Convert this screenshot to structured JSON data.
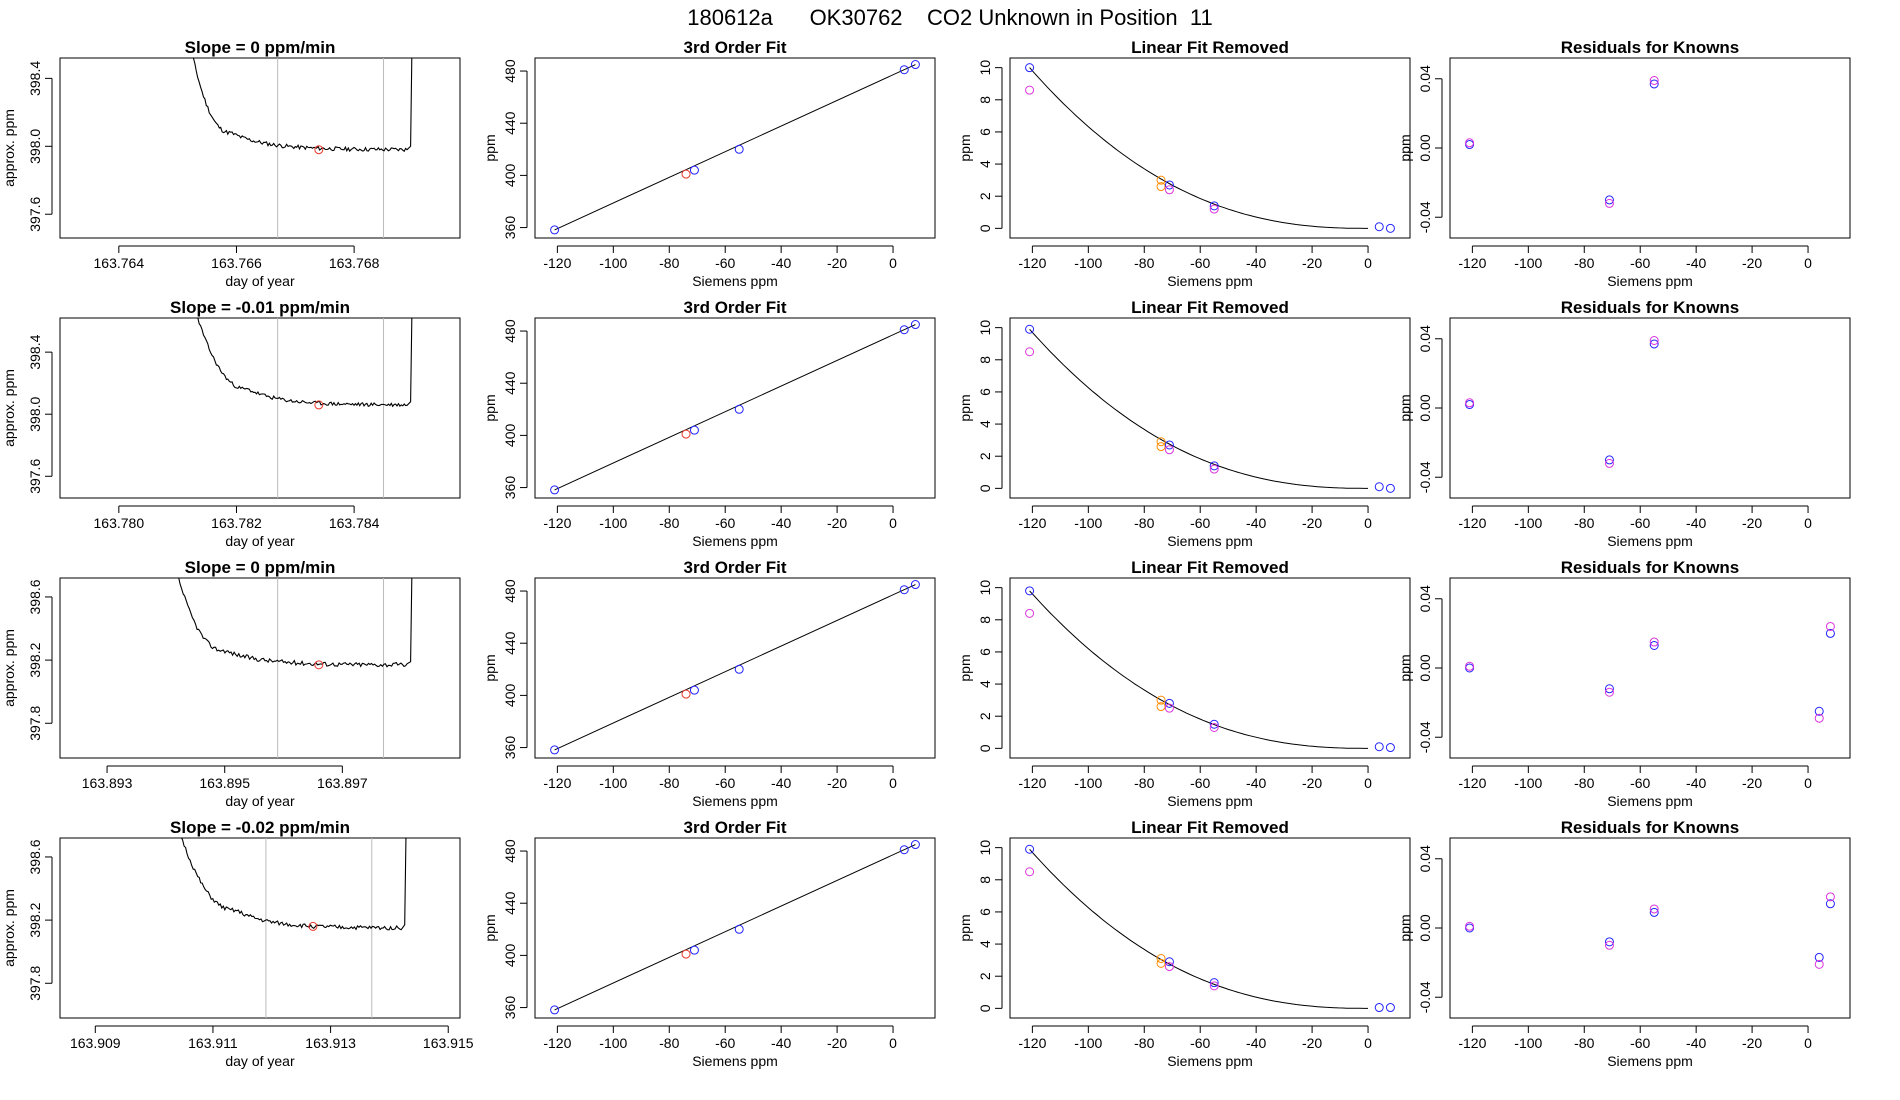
{
  "title": "180612a      OK30762    CO2 Unknown in Position  11",
  "colors": {
    "trace": "#000000",
    "marker_red": "#e8382a",
    "marker_blue": "#2222ff",
    "marker_orange": "#ff8c00",
    "marker_magenta": "#dd33dd",
    "vline": "#bbbbbb",
    "frame": "#000000"
  },
  "chart_data": [
    {
      "type": "line",
      "row": 0,
      "col": 0,
      "title": "Slope =  0  ppm/min",
      "xlabel": "day of year",
      "ylabel": "approx. ppm",
      "xlim": [
        163.763,
        163.7698
      ],
      "ylim": [
        397.46,
        398.52
      ],
      "xticks": [
        163.764,
        163.766,
        163.768
      ],
      "xtick_labels": [
        "163.764",
        "163.766",
        "163.768"
      ],
      "yticks": [
        397.6,
        398.0,
        398.4
      ],
      "ytick_labels": [
        "397.6",
        "398.0",
        "398.4"
      ],
      "vlines": [
        163.7667,
        163.7685
      ],
      "trace": {
        "x_start": 163.765,
        "x_settle": 163.7659,
        "x_end": 163.7689,
        "settle_value": 398.08,
        "plateau": 397.98,
        "noise": 0.012,
        "seed": 11
      },
      "marker": {
        "x": 163.7674,
        "y": 397.98
      }
    },
    {
      "type": "scatter",
      "row": 0,
      "col": 1,
      "title": "3rd Order Fit",
      "xlabel": "Siemens ppm",
      "ylabel": "ppm",
      "xlim": [
        -128,
        15
      ],
      "ylim": [
        352,
        490
      ],
      "xticks": [
        -120,
        -100,
        -80,
        -60,
        -40,
        -20,
        0
      ],
      "yticks": [
        360,
        400,
        440,
        480
      ],
      "fit_line": [
        [
          -121,
          358.2
        ],
        [
          8,
          485.0
        ]
      ],
      "points": [
        {
          "x": -121,
          "y": 358.2,
          "color": "blue"
        },
        {
          "x": -74,
          "y": 401.0,
          "color": "red"
        },
        {
          "x": -71,
          "y": 404.0,
          "color": "blue"
        },
        {
          "x": -55,
          "y": 420.0,
          "color": "blue"
        },
        {
          "x": 4,
          "y": 481.0,
          "color": "blue"
        },
        {
          "x": 8,
          "y": 485.0,
          "color": "blue"
        }
      ]
    },
    {
      "type": "scatter",
      "row": 0,
      "col": 2,
      "title": "Linear Fit Removed",
      "xlabel": "Siemens ppm",
      "ylabel": "ppm",
      "xlim": [
        -128,
        15
      ],
      "ylim": [
        -0.6,
        10.6
      ],
      "xticks": [
        -120,
        -100,
        -80,
        -60,
        -40,
        -20,
        0
      ],
      "yticks": [
        0,
        2,
        4,
        6,
        8,
        10
      ],
      "curve": {
        "x0": -121,
        "x1": 0,
        "a": 10.0,
        "exp": 2.4
      },
      "points": [
        {
          "x": -121,
          "y": 10.0,
          "color": "blue"
        },
        {
          "x": -121,
          "y": 8.6,
          "color": "magenta"
        },
        {
          "x": -74,
          "y": 3.0,
          "color": "orange"
        },
        {
          "x": -74,
          "y": 2.6,
          "color": "orange"
        },
        {
          "x": -71,
          "y": 2.7,
          "color": "blue"
        },
        {
          "x": -71,
          "y": 2.4,
          "color": "magenta"
        },
        {
          "x": -55,
          "y": 1.4,
          "color": "blue"
        },
        {
          "x": -55,
          "y": 1.2,
          "color": "magenta"
        },
        {
          "x": 4,
          "y": 0.1,
          "color": "blue"
        },
        {
          "x": 8,
          "y": 0.0,
          "color": "blue"
        }
      ]
    },
    {
      "type": "scatter",
      "row": 0,
      "col": 3,
      "title": "Residuals for Knowns",
      "xlabel": "Siemens ppm",
      "ylabel": "ppm",
      "xlim": [
        -128,
        15
      ],
      "ylim": [
        -0.052,
        0.052
      ],
      "xticks": [
        -120,
        -100,
        -80,
        -60,
        -40,
        -20,
        0
      ],
      "yticks": [
        -0.04,
        0.0,
        0.04
      ],
      "ytick_labels": [
        "-0.04",
        "0.00",
        "0.04"
      ],
      "points": [
        {
          "x": -121,
          "y": 0.002,
          "color": "blue"
        },
        {
          "x": -121,
          "y": 0.003,
          "color": "magenta"
        },
        {
          "x": -71,
          "y": -0.03,
          "color": "blue"
        },
        {
          "x": -71,
          "y": -0.032,
          "color": "magenta"
        },
        {
          "x": -55,
          "y": 0.037,
          "color": "blue"
        },
        {
          "x": -55,
          "y": 0.039,
          "color": "magenta"
        }
      ]
    },
    {
      "type": "line",
      "row": 1,
      "col": 0,
      "title": "Slope =  -0.01  ppm/min",
      "xlabel": "day of year",
      "ylabel": "approx. ppm",
      "xlim": [
        163.779,
        163.7858
      ],
      "ylim": [
        397.46,
        398.62
      ],
      "xticks": [
        163.78,
        163.782,
        163.784
      ],
      "xtick_labels": [
        "163.780",
        "163.782",
        "163.784"
      ],
      "yticks": [
        397.6,
        398.0,
        398.4
      ],
      "ytick_labels": [
        "397.6",
        "398.0",
        "398.4"
      ],
      "vlines": [
        163.7827,
        163.7845
      ],
      "trace": {
        "x_start": 163.781,
        "x_settle": 163.7822,
        "x_end": 163.7849,
        "settle_value": 398.16,
        "plateau": 398.06,
        "noise": 0.012,
        "seed": 23
      },
      "marker": {
        "x": 163.7834,
        "y": 398.06
      }
    },
    {
      "type": "scatter",
      "row": 1,
      "col": 1,
      "title": "3rd Order Fit",
      "xlabel": "Siemens ppm",
      "ylabel": "ppm",
      "xlim": [
        -128,
        15
      ],
      "ylim": [
        352,
        490
      ],
      "xticks": [
        -120,
        -100,
        -80,
        -60,
        -40,
        -20,
        0
      ],
      "yticks": [
        360,
        400,
        440,
        480
      ],
      "fit_line": [
        [
          -121,
          358.2
        ],
        [
          8,
          485.0
        ]
      ],
      "points": [
        {
          "x": -121,
          "y": 358.2,
          "color": "blue"
        },
        {
          "x": -74,
          "y": 401.0,
          "color": "red"
        },
        {
          "x": -71,
          "y": 404.0,
          "color": "blue"
        },
        {
          "x": -55,
          "y": 420.0,
          "color": "blue"
        },
        {
          "x": 4,
          "y": 481.0,
          "color": "blue"
        },
        {
          "x": 8,
          "y": 485.0,
          "color": "blue"
        }
      ]
    },
    {
      "type": "scatter",
      "row": 1,
      "col": 2,
      "title": "Linear Fit Removed",
      "xlabel": "Siemens ppm",
      "ylabel": "ppm",
      "xlim": [
        -128,
        15
      ],
      "ylim": [
        -0.6,
        10.6
      ],
      "xticks": [
        -120,
        -100,
        -80,
        -60,
        -40,
        -20,
        0
      ],
      "yticks": [
        0,
        2,
        4,
        6,
        8,
        10
      ],
      "curve": {
        "x0": -121,
        "x1": 0,
        "a": 9.9,
        "exp": 2.4
      },
      "points": [
        {
          "x": -121,
          "y": 9.9,
          "color": "blue"
        },
        {
          "x": -121,
          "y": 8.5,
          "color": "magenta"
        },
        {
          "x": -74,
          "y": 2.9,
          "color": "orange"
        },
        {
          "x": -74,
          "y": 2.6,
          "color": "orange"
        },
        {
          "x": -71,
          "y": 2.7,
          "color": "blue"
        },
        {
          "x": -71,
          "y": 2.4,
          "color": "magenta"
        },
        {
          "x": -55,
          "y": 1.4,
          "color": "blue"
        },
        {
          "x": -55,
          "y": 1.2,
          "color": "magenta"
        },
        {
          "x": 4,
          "y": 0.1,
          "color": "blue"
        },
        {
          "x": 8,
          "y": 0.0,
          "color": "blue"
        }
      ]
    },
    {
      "type": "scatter",
      "row": 1,
      "col": 3,
      "title": "Residuals for Knowns",
      "xlabel": "Siemens ppm",
      "ylabel": "ppm",
      "xlim": [
        -128,
        15
      ],
      "ylim": [
        -0.052,
        0.052
      ],
      "xticks": [
        -120,
        -100,
        -80,
        -60,
        -40,
        -20,
        0
      ],
      "yticks": [
        -0.04,
        0.0,
        0.04
      ],
      "ytick_labels": [
        "-0.04",
        "0.00",
        "0.04"
      ],
      "points": [
        {
          "x": -121,
          "y": 0.002,
          "color": "blue"
        },
        {
          "x": -121,
          "y": 0.003,
          "color": "magenta"
        },
        {
          "x": -71,
          "y": -0.03,
          "color": "blue"
        },
        {
          "x": -71,
          "y": -0.032,
          "color": "magenta"
        },
        {
          "x": -55,
          "y": 0.037,
          "color": "blue"
        },
        {
          "x": -55,
          "y": 0.039,
          "color": "magenta"
        }
      ]
    },
    {
      "type": "line",
      "row": 2,
      "col": 0,
      "title": "Slope =  0  ppm/min",
      "xlabel": "day of year",
      "ylabel": "approx. ppm",
      "xlim": [
        163.8922,
        163.899
      ],
      "ylim": [
        397.58,
        398.72
      ],
      "xticks": [
        163.893,
        163.895,
        163.897
      ],
      "xtick_labels": [
        "163.893",
        "163.895",
        "163.897"
      ],
      "yticks": [
        397.8,
        398.2,
        398.6
      ],
      "ytick_labels": [
        "397.8",
        "398.2",
        "398.6"
      ],
      "vlines": [
        163.8959,
        163.8977
      ],
      "trace": {
        "x_start": 163.8939,
        "x_settle": 163.895,
        "x_end": 163.8981,
        "settle_value": 398.26,
        "plateau": 398.17,
        "noise": 0.014,
        "seed": 37
      },
      "marker": {
        "x": 163.8966,
        "y": 398.17
      }
    },
    {
      "type": "scatter",
      "row": 2,
      "col": 1,
      "title": "3rd Order Fit",
      "xlabel": "Siemens ppm",
      "ylabel": "ppm",
      "xlim": [
        -128,
        15
      ],
      "ylim": [
        352,
        490
      ],
      "xticks": [
        -120,
        -100,
        -80,
        -60,
        -40,
        -20,
        0
      ],
      "yticks": [
        360,
        400,
        440,
        480
      ],
      "fit_line": [
        [
          -121,
          358.2
        ],
        [
          8,
          485.0
        ]
      ],
      "points": [
        {
          "x": -121,
          "y": 358.2,
          "color": "blue"
        },
        {
          "x": -74,
          "y": 401.0,
          "color": "red"
        },
        {
          "x": -71,
          "y": 404.0,
          "color": "blue"
        },
        {
          "x": -55,
          "y": 420.0,
          "color": "blue"
        },
        {
          "x": 4,
          "y": 481.0,
          "color": "blue"
        },
        {
          "x": 8,
          "y": 485.0,
          "color": "blue"
        }
      ]
    },
    {
      "type": "scatter",
      "row": 2,
      "col": 2,
      "title": "Linear Fit Removed",
      "xlabel": "Siemens ppm",
      "ylabel": "ppm",
      "xlim": [
        -128,
        15
      ],
      "ylim": [
        -0.6,
        10.6
      ],
      "xticks": [
        -120,
        -100,
        -80,
        -60,
        -40,
        -20,
        0
      ],
      "yticks": [
        0,
        2,
        4,
        6,
        8,
        10
      ],
      "curve": {
        "x0": -121,
        "x1": 0,
        "a": 9.8,
        "exp": 2.4
      },
      "points": [
        {
          "x": -121,
          "y": 9.8,
          "color": "blue"
        },
        {
          "x": -121,
          "y": 8.4,
          "color": "magenta"
        },
        {
          "x": -74,
          "y": 3.0,
          "color": "orange"
        },
        {
          "x": -74,
          "y": 2.6,
          "color": "orange"
        },
        {
          "x": -71,
          "y": 2.8,
          "color": "blue"
        },
        {
          "x": -71,
          "y": 2.5,
          "color": "magenta"
        },
        {
          "x": -55,
          "y": 1.5,
          "color": "blue"
        },
        {
          "x": -55,
          "y": 1.3,
          "color": "magenta"
        },
        {
          "x": 4,
          "y": 0.1,
          "color": "blue"
        },
        {
          "x": 8,
          "y": 0.05,
          "color": "blue"
        }
      ]
    },
    {
      "type": "scatter",
      "row": 2,
      "col": 3,
      "title": "Residuals for Knowns",
      "xlabel": "Siemens ppm",
      "ylabel": "ppm",
      "xlim": [
        -128,
        15
      ],
      "ylim": [
        -0.052,
        0.052
      ],
      "xticks": [
        -120,
        -100,
        -80,
        -60,
        -40,
        -20,
        0
      ],
      "yticks": [
        -0.04,
        0.0,
        0.04
      ],
      "ytick_labels": [
        "-0.04",
        "0.00",
        "0.04"
      ],
      "points": [
        {
          "x": -121,
          "y": 0.0,
          "color": "blue"
        },
        {
          "x": -121,
          "y": 0.001,
          "color": "magenta"
        },
        {
          "x": -71,
          "y": -0.012,
          "color": "blue"
        },
        {
          "x": -71,
          "y": -0.014,
          "color": "magenta"
        },
        {
          "x": -55,
          "y": 0.013,
          "color": "blue"
        },
        {
          "x": -55,
          "y": 0.015,
          "color": "magenta"
        },
        {
          "x": 4,
          "y": -0.025,
          "color": "blue"
        },
        {
          "x": 4,
          "y": -0.029,
          "color": "magenta"
        },
        {
          "x": 8,
          "y": 0.02,
          "color": "blue"
        },
        {
          "x": 8,
          "y": 0.024,
          "color": "magenta"
        }
      ]
    },
    {
      "type": "line",
      "row": 3,
      "col": 0,
      "title": "Slope =  -0.02  ppm/min",
      "xlabel": "day of year",
      "ylabel": "approx. ppm",
      "xlim": [
        163.9084,
        163.9152
      ],
      "ylim": [
        397.58,
        398.72
      ],
      "xticks": [
        163.909,
        163.911,
        163.913,
        163.915
      ],
      "xtick_labels": [
        "163.909",
        "163.911",
        "163.913",
        "163.915"
      ],
      "yticks": [
        397.8,
        398.2,
        398.6
      ],
      "ytick_labels": [
        "397.8",
        "398.2",
        "398.6"
      ],
      "vlines": [
        163.9119,
        163.9137
      ],
      "trace": {
        "x_start": 163.9101,
        "x_settle": 163.9114,
        "x_end": 163.9142,
        "settle_value": 398.26,
        "plateau": 398.15,
        "noise": 0.013,
        "seed": 51
      },
      "marker": {
        "x": 163.9127,
        "y": 398.16
      }
    },
    {
      "type": "scatter",
      "row": 3,
      "col": 1,
      "title": "3rd Order Fit",
      "xlabel": "Siemens ppm",
      "ylabel": "ppm",
      "xlim": [
        -128,
        15
      ],
      "ylim": [
        352,
        490
      ],
      "xticks": [
        -120,
        -100,
        -80,
        -60,
        -40,
        -20,
        0
      ],
      "yticks": [
        360,
        400,
        440,
        480
      ],
      "fit_line": [
        [
          -121,
          358.2
        ],
        [
          8,
          485.0
        ]
      ],
      "points": [
        {
          "x": -121,
          "y": 358.2,
          "color": "blue"
        },
        {
          "x": -74,
          "y": 401.0,
          "color": "red"
        },
        {
          "x": -71,
          "y": 404.0,
          "color": "blue"
        },
        {
          "x": -55,
          "y": 420.0,
          "color": "blue"
        },
        {
          "x": 4,
          "y": 481.0,
          "color": "blue"
        },
        {
          "x": 8,
          "y": 485.0,
          "color": "blue"
        }
      ]
    },
    {
      "type": "scatter",
      "row": 3,
      "col": 2,
      "title": "Linear Fit Removed",
      "xlabel": "Siemens ppm",
      "ylabel": "ppm",
      "xlim": [
        -128,
        15
      ],
      "ylim": [
        -0.6,
        10.6
      ],
      "xticks": [
        -120,
        -100,
        -80,
        -60,
        -40,
        -20,
        0
      ],
      "yticks": [
        0,
        2,
        4,
        6,
        8,
        10
      ],
      "curve": {
        "x0": -121,
        "x1": 0,
        "a": 9.9,
        "exp": 2.4
      },
      "points": [
        {
          "x": -121,
          "y": 9.9,
          "color": "blue"
        },
        {
          "x": -121,
          "y": 8.5,
          "color": "magenta"
        },
        {
          "x": -74,
          "y": 3.1,
          "color": "orange"
        },
        {
          "x": -74,
          "y": 2.8,
          "color": "orange"
        },
        {
          "x": -71,
          "y": 2.9,
          "color": "blue"
        },
        {
          "x": -71,
          "y": 2.6,
          "color": "magenta"
        },
        {
          "x": -55,
          "y": 1.6,
          "color": "blue"
        },
        {
          "x": -55,
          "y": 1.4,
          "color": "magenta"
        },
        {
          "x": 4,
          "y": 0.05,
          "color": "blue"
        },
        {
          "x": 8,
          "y": 0.05,
          "color": "blue"
        }
      ]
    },
    {
      "type": "scatter",
      "row": 3,
      "col": 3,
      "title": "Residuals for Knowns",
      "xlabel": "Siemens ppm",
      "ylabel": "ppm",
      "xlim": [
        -128,
        15
      ],
      "ylim": [
        -0.052,
        0.052
      ],
      "xticks": [
        -120,
        -100,
        -80,
        -60,
        -40,
        -20,
        0
      ],
      "yticks": [
        -0.04,
        0.0,
        0.04
      ],
      "ytick_labels": [
        "-0.04",
        "0.00",
        "0.04"
      ],
      "points": [
        {
          "x": -121,
          "y": 0.0,
          "color": "blue"
        },
        {
          "x": -121,
          "y": 0.001,
          "color": "magenta"
        },
        {
          "x": -71,
          "y": -0.008,
          "color": "blue"
        },
        {
          "x": -71,
          "y": -0.01,
          "color": "magenta"
        },
        {
          "x": -55,
          "y": 0.009,
          "color": "blue"
        },
        {
          "x": -55,
          "y": 0.011,
          "color": "magenta"
        },
        {
          "x": 4,
          "y": -0.017,
          "color": "blue"
        },
        {
          "x": 4,
          "y": -0.021,
          "color": "magenta"
        },
        {
          "x": 8,
          "y": 0.014,
          "color": "blue"
        },
        {
          "x": 8,
          "y": 0.018,
          "color": "magenta"
        }
      ]
    }
  ]
}
